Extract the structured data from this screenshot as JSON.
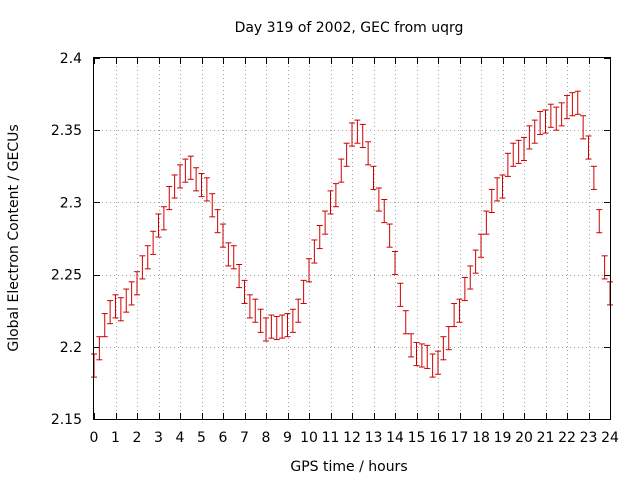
{
  "chart_data": {
    "type": "scatter",
    "title": "Day 319 of 2002, GEC from uqrg",
    "xlabel": "GPS time / hours",
    "ylabel": "Global Electron Content / GECUs",
    "xlim": [
      0,
      24
    ],
    "ylim": [
      2.15,
      2.4
    ],
    "xticks": [
      "0",
      "1",
      "2",
      "3",
      "4",
      "5",
      "6",
      "7",
      "8",
      "9",
      "10",
      "11",
      "12",
      "13",
      "14",
      "15",
      "16",
      "17",
      "18",
      "19",
      "20",
      "21",
      "22",
      "23",
      "24"
    ],
    "yticks": [
      "2.15",
      "2.2",
      "2.25",
      "2.3",
      "2.35",
      "2.4"
    ],
    "grid": true,
    "error_bars": true,
    "color": "#cc0000",
    "points": [
      [
        0.0,
        2.187,
        0.008
      ],
      [
        0.25,
        2.199,
        0.008
      ],
      [
        0.5,
        2.215,
        0.008
      ],
      [
        0.75,
        2.224,
        0.008
      ],
      [
        1.0,
        2.228,
        0.008
      ],
      [
        1.25,
        2.226,
        0.008
      ],
      [
        1.5,
        2.232,
        0.008
      ],
      [
        1.75,
        2.237,
        0.008
      ],
      [
        2.0,
        2.244,
        0.008
      ],
      [
        2.25,
        2.255,
        0.008
      ],
      [
        2.5,
        2.262,
        0.008
      ],
      [
        2.75,
        2.272,
        0.008
      ],
      [
        3.0,
        2.284,
        0.008
      ],
      [
        3.25,
        2.289,
        0.008
      ],
      [
        3.5,
        2.303,
        0.008
      ],
      [
        3.75,
        2.311,
        0.008
      ],
      [
        4.0,
        2.318,
        0.008
      ],
      [
        4.25,
        2.322,
        0.008
      ],
      [
        4.5,
        2.324,
        0.008
      ],
      [
        4.75,
        2.316,
        0.008
      ],
      [
        5.0,
        2.312,
        0.008
      ],
      [
        5.25,
        2.309,
        0.008
      ],
      [
        5.5,
        2.298,
        0.008
      ],
      [
        5.75,
        2.287,
        0.008
      ],
      [
        6.0,
        2.277,
        0.008
      ],
      [
        6.25,
        2.264,
        0.008
      ],
      [
        6.5,
        2.262,
        0.008
      ],
      [
        6.75,
        2.249,
        0.008
      ],
      [
        7.0,
        2.238,
        0.008
      ],
      [
        7.25,
        2.228,
        0.008
      ],
      [
        7.5,
        2.225,
        0.008
      ],
      [
        7.75,
        2.218,
        0.008
      ],
      [
        8.0,
        2.212,
        0.008
      ],
      [
        8.25,
        2.214,
        0.008
      ],
      [
        8.5,
        2.213,
        0.008
      ],
      [
        8.75,
        2.214,
        0.008
      ],
      [
        9.0,
        2.215,
        0.008
      ],
      [
        9.25,
        2.218,
        0.008
      ],
      [
        9.5,
        2.225,
        0.008
      ],
      [
        9.75,
        2.238,
        0.008
      ],
      [
        10.0,
        2.253,
        0.008
      ],
      [
        10.25,
        2.266,
        0.008
      ],
      [
        10.5,
        2.276,
        0.008
      ],
      [
        10.75,
        2.286,
        0.008
      ],
      [
        11.0,
        2.3,
        0.008
      ],
      [
        11.25,
        2.305,
        0.008
      ],
      [
        11.5,
        2.322,
        0.008
      ],
      [
        11.75,
        2.333,
        0.008
      ],
      [
        12.0,
        2.347,
        0.008
      ],
      [
        12.25,
        2.349,
        0.008
      ],
      [
        12.5,
        2.346,
        0.008
      ],
      [
        12.75,
        2.334,
        0.008
      ],
      [
        13.0,
        2.317,
        0.008
      ],
      [
        13.25,
        2.302,
        0.008
      ],
      [
        13.5,
        2.294,
        0.008
      ],
      [
        13.75,
        2.277,
        0.008
      ],
      [
        14.0,
        2.258,
        0.008
      ],
      [
        14.25,
        2.236,
        0.008
      ],
      [
        14.5,
        2.217,
        0.008
      ],
      [
        14.75,
        2.201,
        0.008
      ],
      [
        15.0,
        2.195,
        0.008
      ],
      [
        15.25,
        2.194,
        0.008
      ],
      [
        15.5,
        2.193,
        0.008
      ],
      [
        15.75,
        2.187,
        0.008
      ],
      [
        16.0,
        2.189,
        0.008
      ],
      [
        16.25,
        2.199,
        0.008
      ],
      [
        16.5,
        2.206,
        0.008
      ],
      [
        16.75,
        2.222,
        0.008
      ],
      [
        17.0,
        2.225,
        0.008
      ],
      [
        17.25,
        2.24,
        0.008
      ],
      [
        17.5,
        2.248,
        0.008
      ],
      [
        17.75,
        2.259,
        0.008
      ],
      [
        18.0,
        2.27,
        0.008
      ],
      [
        18.25,
        2.286,
        0.008
      ],
      [
        18.5,
        2.301,
        0.008
      ],
      [
        18.75,
        2.309,
        0.008
      ],
      [
        19.0,
        2.311,
        0.008
      ],
      [
        19.25,
        2.326,
        0.008
      ],
      [
        19.5,
        2.333,
        0.008
      ],
      [
        19.75,
        2.335,
        0.008
      ],
      [
        20.0,
        2.337,
        0.008
      ],
      [
        20.25,
        2.345,
        0.008
      ],
      [
        20.5,
        2.349,
        0.008
      ],
      [
        20.75,
        2.355,
        0.008
      ],
      [
        21.0,
        2.356,
        0.008
      ],
      [
        21.25,
        2.36,
        0.008
      ],
      [
        21.5,
        2.358,
        0.008
      ],
      [
        21.75,
        2.361,
        0.008
      ],
      [
        22.0,
        2.366,
        0.008
      ],
      [
        22.25,
        2.368,
        0.008
      ],
      [
        22.5,
        2.369,
        0.008
      ],
      [
        22.75,
        2.352,
        0.008
      ],
      [
        23.0,
        2.338,
        0.008
      ],
      [
        23.25,
        2.317,
        0.008
      ],
      [
        23.5,
        2.287,
        0.008
      ],
      [
        23.75,
        2.255,
        0.008
      ],
      [
        24.0,
        2.237,
        0.008
      ]
    ]
  }
}
